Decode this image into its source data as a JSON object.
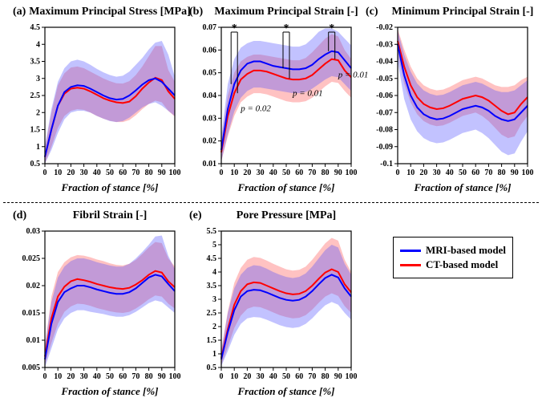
{
  "global": {
    "xlabel": "Fraction of stance [%]",
    "xlim": [
      0,
      100
    ],
    "xticks": [
      0,
      10,
      20,
      30,
      40,
      50,
      60,
      70,
      80,
      90,
      100
    ],
    "colors": {
      "mri": "#0000ff",
      "ct": "#ff0000",
      "mri_fill": "rgba(80,80,255,0.35)",
      "ct_fill": "rgba(255,80,80,0.35)",
      "axis": "#000000"
    },
    "line_width": 2
  },
  "legend": {
    "mri": "MRI-based model",
    "ct": "CT-based model"
  },
  "panels": {
    "a": {
      "tag": "(a)",
      "title": "Maximum Principal Stress [MPa]",
      "ylim": [
        0.5,
        4.5
      ],
      "yticks": [
        0.5,
        1,
        1.5,
        2,
        2.5,
        3,
        3.5,
        4,
        4.5
      ],
      "x": [
        0,
        5,
        10,
        15,
        20,
        25,
        30,
        35,
        40,
        45,
        50,
        55,
        60,
        65,
        70,
        75,
        80,
        85,
        90,
        95,
        100
      ],
      "mri": {
        "mean": [
          0.7,
          1.5,
          2.2,
          2.6,
          2.75,
          2.8,
          2.78,
          2.7,
          2.6,
          2.5,
          2.42,
          2.38,
          2.4,
          2.5,
          2.65,
          2.82,
          2.95,
          3.0,
          2.9,
          2.7,
          2.5
        ],
        "lo": [
          0.5,
          0.9,
          1.4,
          1.8,
          2.0,
          2.05,
          2.05,
          2.0,
          1.9,
          1.82,
          1.75,
          1.72,
          1.75,
          1.85,
          2.0,
          2.15,
          2.25,
          2.3,
          2.2,
          2.05,
          1.9
        ],
        "hi": [
          1.0,
          2.1,
          2.9,
          3.3,
          3.5,
          3.55,
          3.5,
          3.4,
          3.28,
          3.18,
          3.1,
          3.05,
          3.08,
          3.2,
          3.4,
          3.6,
          3.85,
          4.05,
          4.1,
          3.7,
          3.05
        ]
      },
      "ct": {
        "mean": [
          0.7,
          1.5,
          2.2,
          2.55,
          2.7,
          2.73,
          2.7,
          2.62,
          2.52,
          2.42,
          2.35,
          2.3,
          2.28,
          2.32,
          2.48,
          2.7,
          2.88,
          3.02,
          2.95,
          2.62,
          2.4
        ],
        "lo": [
          0.5,
          1.0,
          1.55,
          1.9,
          2.05,
          2.1,
          2.08,
          2.0,
          1.9,
          1.82,
          1.76,
          1.72,
          1.72,
          1.78,
          1.92,
          2.1,
          2.25,
          2.35,
          2.3,
          2.05,
          1.88
        ],
        "hi": [
          0.95,
          2.0,
          2.8,
          3.15,
          3.32,
          3.35,
          3.3,
          3.2,
          3.1,
          3.0,
          2.92,
          2.86,
          2.85,
          2.92,
          3.1,
          3.35,
          3.65,
          3.95,
          3.95,
          3.25,
          2.9
        ]
      }
    },
    "b": {
      "tag": "(b)",
      "title": "Maximum Principal Strain [-]",
      "ylim": [
        0.01,
        0.07
      ],
      "yticks": [
        0.01,
        0.02,
        0.03,
        0.04,
        0.05,
        0.06,
        0.07
      ],
      "x": [
        0,
        5,
        10,
        15,
        20,
        25,
        30,
        35,
        40,
        45,
        50,
        55,
        60,
        65,
        70,
        75,
        80,
        85,
        90,
        95,
        100
      ],
      "mri": {
        "mean": [
          0.016,
          0.034,
          0.045,
          0.051,
          0.054,
          0.055,
          0.055,
          0.054,
          0.053,
          0.0525,
          0.052,
          0.0515,
          0.0515,
          0.052,
          0.0535,
          0.056,
          0.058,
          0.0595,
          0.059,
          0.0555,
          0.052
        ],
        "lo": [
          0.011,
          0.023,
          0.033,
          0.039,
          0.042,
          0.0435,
          0.0435,
          0.043,
          0.0425,
          0.042,
          0.0415,
          0.041,
          0.041,
          0.0415,
          0.043,
          0.045,
          0.047,
          0.0485,
          0.048,
          0.045,
          0.042
        ],
        "hi": [
          0.022,
          0.045,
          0.056,
          0.061,
          0.063,
          0.064,
          0.064,
          0.0635,
          0.063,
          0.0625,
          0.062,
          0.0615,
          0.0615,
          0.0625,
          0.065,
          0.068,
          0.0695,
          0.0695,
          0.068,
          0.065,
          0.062
        ]
      },
      "ct": {
        "mean": [
          0.015,
          0.031,
          0.041,
          0.047,
          0.0495,
          0.051,
          0.051,
          0.0505,
          0.0495,
          0.0485,
          0.0475,
          0.047,
          0.047,
          0.0475,
          0.049,
          0.0515,
          0.054,
          0.056,
          0.0555,
          0.051,
          0.048
        ],
        "lo": [
          0.011,
          0.022,
          0.031,
          0.037,
          0.0395,
          0.041,
          0.041,
          0.0405,
          0.0395,
          0.0385,
          0.0375,
          0.037,
          0.037,
          0.0375,
          0.039,
          0.0415,
          0.044,
          0.046,
          0.0455,
          0.042,
          0.039
        ],
        "hi": [
          0.02,
          0.04,
          0.05,
          0.055,
          0.057,
          0.058,
          0.058,
          0.0575,
          0.057,
          0.0565,
          0.056,
          0.0555,
          0.0555,
          0.0565,
          0.059,
          0.062,
          0.065,
          0.067,
          0.066,
          0.06,
          0.056
        ]
      },
      "annotations": [
        {
          "x": 10,
          "p": "p = 0.02"
        },
        {
          "x": 50,
          "p": "p = 0.01"
        },
        {
          "x": 85,
          "p": "p = 0.01"
        }
      ]
    },
    "c": {
      "tag": "(c)",
      "title": "Minimum Principal Strain [-]",
      "ylim": [
        -0.1,
        -0.02
      ],
      "yticks": [
        -0.1,
        -0.09,
        -0.08,
        -0.07,
        -0.06,
        -0.05,
        -0.04,
        -0.03,
        -0.02
      ],
      "x": [
        0,
        5,
        10,
        15,
        20,
        25,
        30,
        35,
        40,
        45,
        50,
        55,
        60,
        65,
        70,
        75,
        80,
        85,
        90,
        95,
        100
      ],
      "mri": {
        "mean": [
          -0.03,
          -0.048,
          -0.06,
          -0.067,
          -0.071,
          -0.073,
          -0.074,
          -0.0735,
          -0.072,
          -0.07,
          -0.068,
          -0.067,
          -0.066,
          -0.067,
          -0.069,
          -0.072,
          -0.074,
          -0.075,
          -0.074,
          -0.07,
          -0.066
        ],
        "lo": [
          -0.04,
          -0.062,
          -0.074,
          -0.081,
          -0.085,
          -0.087,
          -0.088,
          -0.0875,
          -0.086,
          -0.084,
          -0.082,
          -0.081,
          -0.08,
          -0.082,
          -0.085,
          -0.089,
          -0.093,
          -0.095,
          -0.094,
          -0.087,
          -0.081
        ],
        "hi": [
          -0.022,
          -0.036,
          -0.046,
          -0.053,
          -0.057,
          -0.059,
          -0.06,
          -0.0595,
          -0.058,
          -0.056,
          -0.054,
          -0.053,
          -0.052,
          -0.053,
          -0.055,
          -0.057,
          -0.058,
          -0.058,
          -0.057,
          -0.054,
          -0.051
        ]
      },
      "ct": {
        "mean": [
          -0.028,
          -0.043,
          -0.054,
          -0.061,
          -0.065,
          -0.067,
          -0.068,
          -0.0675,
          -0.066,
          -0.064,
          -0.062,
          -0.061,
          -0.06,
          -0.061,
          -0.063,
          -0.066,
          -0.069,
          -0.071,
          -0.07,
          -0.065,
          -0.061
        ],
        "lo": [
          -0.035,
          -0.053,
          -0.064,
          -0.071,
          -0.075,
          -0.077,
          -0.078,
          -0.0775,
          -0.076,
          -0.074,
          -0.072,
          -0.071,
          -0.07,
          -0.072,
          -0.075,
          -0.079,
          -0.083,
          -0.085,
          -0.084,
          -0.077,
          -0.072
        ],
        "hi": [
          -0.021,
          -0.033,
          -0.043,
          -0.05,
          -0.054,
          -0.056,
          -0.057,
          -0.0565,
          -0.055,
          -0.053,
          -0.051,
          -0.05,
          -0.049,
          -0.05,
          -0.052,
          -0.054,
          -0.055,
          -0.055,
          -0.054,
          -0.051,
          -0.049
        ]
      }
    },
    "d": {
      "tag": "(d)",
      "title": "Fibril Strain [-]",
      "ylim": [
        0.005,
        0.03
      ],
      "yticks": [
        0.005,
        0.01,
        0.015,
        0.02,
        0.025,
        0.03
      ],
      "x": [
        0,
        5,
        10,
        15,
        20,
        25,
        30,
        35,
        40,
        45,
        50,
        55,
        60,
        65,
        70,
        75,
        80,
        85,
        90,
        95,
        100
      ],
      "mri": {
        "mean": [
          0.0065,
          0.013,
          0.017,
          0.0188,
          0.0195,
          0.02,
          0.02,
          0.0197,
          0.0193,
          0.019,
          0.0187,
          0.0185,
          0.0185,
          0.0188,
          0.0195,
          0.0205,
          0.0215,
          0.022,
          0.0217,
          0.0203,
          0.019
        ],
        "lo": [
          0.005,
          0.0085,
          0.012,
          0.014,
          0.015,
          0.0155,
          0.0155,
          0.0152,
          0.015,
          0.0148,
          0.0145,
          0.0143,
          0.0143,
          0.0146,
          0.0152,
          0.016,
          0.0168,
          0.0173,
          0.017,
          0.016,
          0.015
        ],
        "hi": [
          0.009,
          0.017,
          0.0215,
          0.0235,
          0.0245,
          0.025,
          0.025,
          0.0247,
          0.0243,
          0.024,
          0.0237,
          0.0235,
          0.0235,
          0.024,
          0.025,
          0.0262,
          0.0275,
          0.029,
          0.0292,
          0.0255,
          0.023
        ]
      },
      "ct": {
        "mean": [
          0.007,
          0.014,
          0.018,
          0.0198,
          0.0208,
          0.0212,
          0.021,
          0.0207,
          0.0203,
          0.02,
          0.0197,
          0.0195,
          0.0194,
          0.0196,
          0.0202,
          0.021,
          0.022,
          0.0227,
          0.0224,
          0.0208,
          0.0197
        ],
        "lo": [
          0.0055,
          0.0095,
          0.013,
          0.0152,
          0.0162,
          0.0167,
          0.0166,
          0.0163,
          0.0159,
          0.0156,
          0.0153,
          0.0151,
          0.015,
          0.0152,
          0.0158,
          0.0166,
          0.0175,
          0.0182,
          0.018,
          0.0167,
          0.0158
        ],
        "hi": [
          0.0088,
          0.018,
          0.0225,
          0.0243,
          0.0252,
          0.0256,
          0.0255,
          0.0252,
          0.0248,
          0.0245,
          0.0241,
          0.0238,
          0.0237,
          0.024,
          0.0247,
          0.0258,
          0.027,
          0.028,
          0.0278,
          0.025,
          0.0235
        ]
      }
    },
    "e": {
      "tag": "(e)",
      "title": "Pore Pressure [MPa]",
      "ylim": [
        0.5,
        5.5
      ],
      "yticks": [
        0.5,
        1,
        1.5,
        2,
        2.5,
        3,
        3.5,
        4,
        4.5,
        5,
        5.5
      ],
      "x": [
        0,
        5,
        10,
        15,
        20,
        25,
        30,
        35,
        40,
        45,
        50,
        55,
        60,
        65,
        70,
        75,
        80,
        85,
        90,
        95,
        100
      ],
      "mri": {
        "mean": [
          0.8,
          1.8,
          2.6,
          3.1,
          3.3,
          3.35,
          3.33,
          3.25,
          3.15,
          3.05,
          2.98,
          2.95,
          2.98,
          3.1,
          3.3,
          3.55,
          3.78,
          3.9,
          3.8,
          3.4,
          3.1
        ],
        "lo": [
          0.55,
          1.1,
          1.7,
          2.1,
          2.3,
          2.35,
          2.33,
          2.25,
          2.15,
          2.05,
          1.98,
          1.95,
          1.98,
          2.1,
          2.3,
          2.55,
          2.78,
          2.9,
          2.8,
          2.5,
          2.25
        ],
        "hi": [
          1.1,
          2.5,
          3.4,
          3.9,
          4.15,
          4.25,
          4.22,
          4.12,
          4.0,
          3.9,
          3.82,
          3.78,
          3.82,
          3.95,
          4.2,
          4.5,
          4.8,
          5.0,
          4.9,
          4.3,
          3.9
        ]
      },
      "ct": {
        "mean": [
          0.85,
          1.9,
          2.8,
          3.3,
          3.55,
          3.62,
          3.6,
          3.5,
          3.4,
          3.3,
          3.22,
          3.18,
          3.2,
          3.3,
          3.5,
          3.75,
          3.98,
          4.1,
          4.0,
          3.55,
          3.25
        ],
        "lo": [
          0.6,
          1.25,
          1.95,
          2.4,
          2.65,
          2.73,
          2.71,
          2.62,
          2.52,
          2.42,
          2.35,
          2.3,
          2.32,
          2.42,
          2.62,
          2.87,
          3.1,
          3.22,
          3.12,
          2.75,
          2.5
        ],
        "hi": [
          1.15,
          2.55,
          3.6,
          4.15,
          4.45,
          4.55,
          4.52,
          4.42,
          4.3,
          4.2,
          4.1,
          4.05,
          4.08,
          4.2,
          4.45,
          4.75,
          5.05,
          5.25,
          5.15,
          4.45,
          4.0
        ]
      }
    }
  }
}
